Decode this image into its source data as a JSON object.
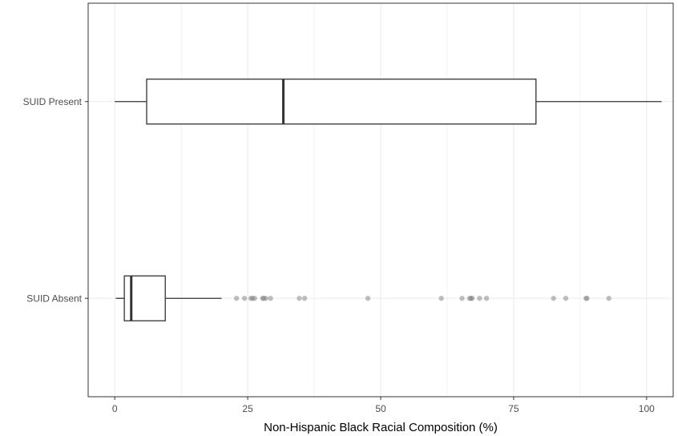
{
  "chart_data": {
    "type": "boxplot",
    "orientation": "horizontal",
    "title": "",
    "xlabel": "Non-Hispanic Black Racial Composition (%)",
    "ylabel": "",
    "xlim": [
      -5,
      105
    ],
    "x_ticks": [
      0,
      25,
      50,
      75,
      100
    ],
    "x_tick_labels": [
      "0",
      "25",
      "50",
      "75",
      "100"
    ],
    "grid": true,
    "theme": "bw",
    "categories": [
      "SUID Present",
      "SUID Absent"
    ],
    "boxes": [
      {
        "category": "SUID Present",
        "whisker_low": 0,
        "q1": 6,
        "median": 31.7,
        "q3": 79.2,
        "whisker_high": 102.8,
        "outliers": []
      },
      {
        "category": "SUID Absent",
        "whisker_low": 0.2,
        "q1": 1.8,
        "median": 3.1,
        "q3": 9.5,
        "whisker_high": 20.1,
        "outliers": [
          22.9,
          24.4,
          25.6,
          25.9,
          26.3,
          27.8,
          28.0,
          28.4,
          29.3,
          34.7,
          35.7,
          47.6,
          61.4,
          65.3,
          66.7,
          67.0,
          67.2,
          68.6,
          69.9,
          82.5,
          84.8,
          88.6,
          88.8,
          92.9
        ]
      }
    ],
    "colors": {
      "background": "#ffffff",
      "grid": "#ebebeb",
      "panel_border": "#333333",
      "box_fill": "#ffffff",
      "box_stroke": "#333333",
      "outlier": "#808080"
    }
  }
}
